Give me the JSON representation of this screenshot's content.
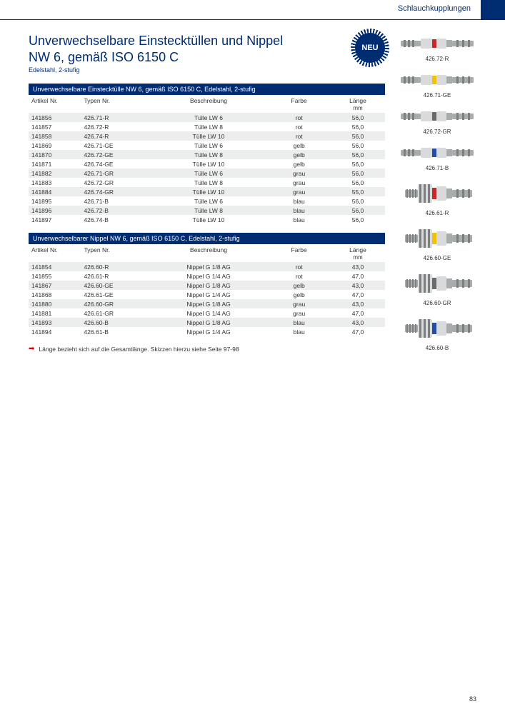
{
  "header": {
    "category": "Schlauchkupplungen",
    "title_line1": "Unverwechselbare Einstecktüllen und Nippel",
    "title_line2": "NW 6, gemäß ISO 6150 C",
    "subtitle": "Edelstahl, 2-stufig",
    "badge": "NEU"
  },
  "colors": {
    "brand": "#002d72",
    "row_shade": "#eceded",
    "arrow": "#d00000",
    "ring_rot": "#c62828",
    "ring_gelb": "#f2c200",
    "ring_grau": "#6b6b6b",
    "ring_blau": "#1e4fa3",
    "metal_light": "#d8dadb",
    "metal_mid": "#a9acad",
    "metal_dark": "#7c7f80"
  },
  "table1": {
    "header": "Unverwechselbare Einstecktülle NW 6, gemäß ISO 6150 C, Edelstahl, 2-stufig",
    "columns": [
      "Artikel Nr.",
      "Typen Nr.",
      "Beschreibung",
      "Farbe",
      "Länge"
    ],
    "unit": "mm",
    "rows": [
      [
        "141856",
        "426.71-R",
        "Tülle LW 6",
        "rot",
        "56,0"
      ],
      [
        "141857",
        "426.72-R",
        "Tülle LW 8",
        "rot",
        "56,0"
      ],
      [
        "141858",
        "426.74-R",
        "Tülle LW 10",
        "rot",
        "56,0"
      ],
      [
        "141869",
        "426.71-GE",
        "Tülle LW 6",
        "gelb",
        "56,0"
      ],
      [
        "141870",
        "426.72-GE",
        "Tülle LW 8",
        "gelb",
        "56,0"
      ],
      [
        "141871",
        "426.74-GE",
        "Tülle LW 10",
        "gelb",
        "56,0"
      ],
      [
        "141882",
        "426.71-GR",
        "Tülle LW 6",
        "grau",
        "56,0"
      ],
      [
        "141883",
        "426.72-GR",
        "Tülle LW 8",
        "grau",
        "56,0"
      ],
      [
        "141884",
        "426.74-GR",
        "Tülle LW 10",
        "grau",
        "55,0"
      ],
      [
        "141895",
        "426.71-B",
        "Tülle LW 6",
        "blau",
        "56,0"
      ],
      [
        "141896",
        "426.72-B",
        "Tülle LW 8",
        "blau",
        "56,0"
      ],
      [
        "141897",
        "426.74-B",
        "Tülle LW 10",
        "blau",
        "56,0"
      ]
    ]
  },
  "table2": {
    "header": "Unverwechselbarer Nippel NW 6, gemäß ISO 6150 C, Edelstahl, 2-stufig",
    "columns": [
      "Artikel Nr.",
      "Typen Nr.",
      "Beschreibung",
      "Farbe",
      "Länge"
    ],
    "unit": "mm",
    "rows": [
      [
        "141854",
        "426.60-R",
        "Nippel G 1/8 AG",
        "rot",
        "43,0"
      ],
      [
        "141855",
        "426.61-R",
        "Nippel G 1/4 AG",
        "rot",
        "47,0"
      ],
      [
        "141867",
        "426.60-GE",
        "Nippel G 1/8 AG",
        "gelb",
        "43,0"
      ],
      [
        "141868",
        "426.61-GE",
        "Nippel G 1/4 AG",
        "gelb",
        "47,0"
      ],
      [
        "141880",
        "426.60-GR",
        "Nippel G 1/8 AG",
        "grau",
        "43,0"
      ],
      [
        "141881",
        "426.61-GR",
        "Nippel G 1/4 AG",
        "grau",
        "47,0"
      ],
      [
        "141893",
        "426.60-B",
        "Nippel G 1/8 AG",
        "blau",
        "43,0"
      ],
      [
        "141894",
        "426.61-B",
        "Nippel G 1/4 AG",
        "blau",
        "47,0"
      ]
    ]
  },
  "footnote": "Länge bezieht sich auf die Gesamtlänge. Skizzen hierzu siehe Seite 97-98",
  "side_images": [
    {
      "label": "426.72-R",
      "kind": "tuelle",
      "ring": "#c62828"
    },
    {
      "label": "426.71-GE",
      "kind": "tuelle",
      "ring": "#f2c200"
    },
    {
      "label": "426.72-GR",
      "kind": "tuelle",
      "ring": "#6b6b6b"
    },
    {
      "label": "426.71-B",
      "kind": "tuelle",
      "ring": "#1e4fa3"
    },
    {
      "label": "426.61-R",
      "kind": "nippel",
      "ring": "#c62828"
    },
    {
      "label": "426.60-GE",
      "kind": "nippel",
      "ring": "#f2c200"
    },
    {
      "label": "426.60-GR",
      "kind": "nippel",
      "ring": "#6b6b6b"
    },
    {
      "label": "426.60-B",
      "kind": "nippel",
      "ring": "#1e4fa3"
    }
  ],
  "page_number": "83"
}
